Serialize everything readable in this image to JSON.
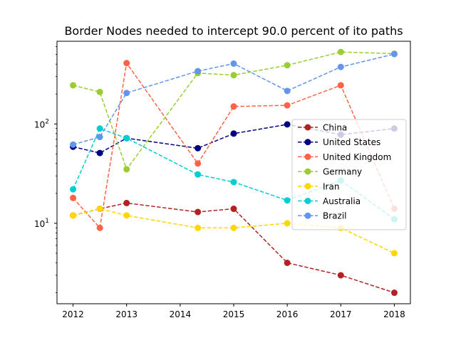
{
  "chart_data": {
    "type": "line",
    "title": "Border Nodes needed to intercept 90.0 percent of ito paths",
    "xlabel": "",
    "ylabel": "",
    "y_scale": "log",
    "xlim": [
      2011.7,
      2018.3
    ],
    "ylim": [
      1.55,
      680
    ],
    "x_ticks": [
      2012,
      2013,
      2014,
      2015,
      2016,
      2017,
      2018
    ],
    "y_ticks": [
      {
        "value": 10,
        "base": "10",
        "exp": "1"
      },
      {
        "value": 100,
        "base": "10",
        "exp": "2"
      }
    ],
    "legend_position": "center-right",
    "grid": false,
    "series": [
      {
        "name": "China",
        "color": "#b22222",
        "points": [
          [
            2012,
            12
          ],
          [
            2012.5,
            14
          ],
          [
            2013,
            16
          ],
          [
            2014.33,
            13
          ],
          [
            2015,
            14
          ],
          [
            2016,
            4
          ],
          [
            2017,
            3
          ],
          [
            2018,
            2
          ]
        ]
      },
      {
        "name": "United States",
        "color": "#000080",
        "points": [
          [
            2012,
            59
          ],
          [
            2012.5,
            51
          ],
          [
            2013,
            72
          ],
          [
            2014.33,
            57
          ],
          [
            2015,
            80
          ],
          [
            2016,
            99
          ],
          [
            2017,
            78
          ],
          [
            2018,
            90
          ]
        ]
      },
      {
        "name": "United Kingdom",
        "color": "#ff6347",
        "points": [
          [
            2012,
            18
          ],
          [
            2012.5,
            9
          ],
          [
            2013,
            410
          ],
          [
            2014.33,
            40
          ],
          [
            2015,
            150
          ],
          [
            2016,
            154
          ],
          [
            2017,
            245
          ],
          [
            2018,
            14
          ]
        ]
      },
      {
        "name": "Germany",
        "color": "#9acd32",
        "points": [
          [
            2012,
            245
          ],
          [
            2012.5,
            210
          ],
          [
            2013,
            35
          ],
          [
            2014.33,
            325
          ],
          [
            2015,
            310
          ],
          [
            2016,
            390
          ],
          [
            2017,
            530
          ],
          [
            2018,
            510
          ]
        ]
      },
      {
        "name": "Iran",
        "color": "#ffd700",
        "points": [
          [
            2012,
            12
          ],
          [
            2012.5,
            14
          ],
          [
            2013,
            12
          ],
          [
            2014.33,
            9
          ],
          [
            2015,
            9
          ],
          [
            2016,
            10
          ],
          [
            2017,
            9
          ],
          [
            2018,
            5
          ]
        ]
      },
      {
        "name": "Australia",
        "color": "#00ced1",
        "points": [
          [
            2012,
            22
          ],
          [
            2012.5,
            90
          ],
          [
            2013,
            72
          ],
          [
            2014.33,
            31
          ],
          [
            2015,
            26
          ],
          [
            2016,
            17
          ],
          [
            2017,
            27
          ],
          [
            2018,
            11
          ]
        ]
      },
      {
        "name": "Brazil",
        "color": "#6495ed",
        "points": [
          [
            2012,
            62
          ],
          [
            2012.5,
            74
          ],
          [
            2013,
            205
          ],
          [
            2014.33,
            340
          ],
          [
            2015,
            405
          ],
          [
            2016,
            215
          ],
          [
            2017,
            375
          ],
          [
            2018,
            505
          ]
        ]
      }
    ]
  }
}
